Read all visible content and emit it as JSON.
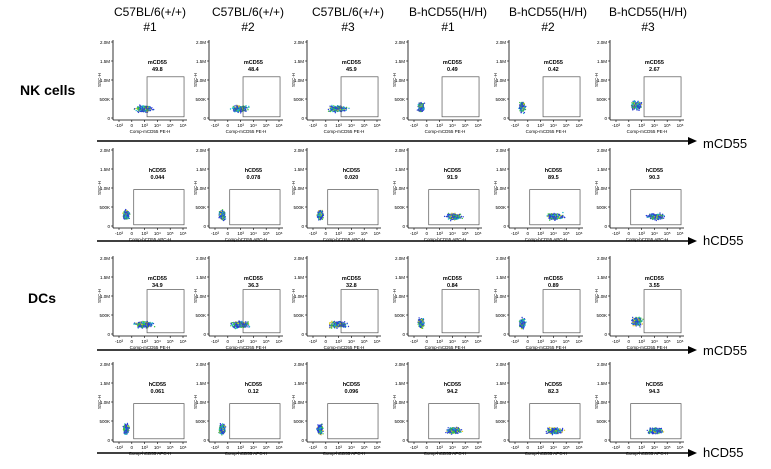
{
  "headers": [
    {
      "line1": "C57BL/6(+/+)",
      "line2": "#1"
    },
    {
      "line1": "C57BL/6(+/+)",
      "line2": "#2"
    },
    {
      "line1": "C57BL/6(+/+)",
      "line2": "#3"
    },
    {
      "line1": "B-hCD55(H/H)",
      "line2": "#1"
    },
    {
      "line1": "B-hCD55(H/H)",
      "line2": "#2"
    },
    {
      "line1": "B-hCD55(H/H)",
      "line2": "#3"
    }
  ],
  "group_labels": [
    "NK cells",
    "DCs"
  ],
  "arrow_labels": [
    "mCD55",
    "hCD55",
    "mCD55",
    "hCD55"
  ],
  "chart_data": {
    "type": "scatter",
    "panel_common": {
      "y_tick_labels": [
        "2.0M",
        "1.5M",
        "1.0M",
        "500K",
        "0"
      ],
      "ylabel": "SSC-H",
      "x_tick_labels": [
        "-10³",
        "0",
        "10³",
        "10⁴",
        "10⁵",
        "10⁶"
      ]
    },
    "rows": [
      {
        "group": "NK cells",
        "marker": "mCD55",
        "gate_label": "mCD55",
        "xlabel": "Comp-mCD55 PE-H",
        "values": [
          "49.8",
          "48.4",
          "45.9",
          "0.49",
          "0.42",
          "2.67"
        ]
      },
      {
        "group": "NK cells",
        "marker": "hCD55",
        "gate_label": "hCD55",
        "xlabel": "Comp-hCD55 APC-H",
        "values": [
          "0.044",
          "0.078",
          "0.020",
          "91.9",
          "89.5",
          "90.3"
        ]
      },
      {
        "group": "DCs",
        "marker": "mCD55",
        "gate_label": "mCD55",
        "xlabel": "Comp-mCD55 PE-H",
        "values": [
          "34.9",
          "36.3",
          "32.8",
          "0.84",
          "0.89",
          "3.55"
        ]
      },
      {
        "group": "DCs",
        "marker": "hCD55",
        "gate_label": "hCD55",
        "xlabel": "Comp-hCD55 APC-H",
        "values": [
          "0.061",
          "0.12",
          "0.096",
          "94.2",
          "82.3",
          "94.3"
        ]
      }
    ]
  },
  "colors": {
    "density_low": "#2a3fd6",
    "density_mid": "#18b8c8",
    "density_high": "#3cc43c",
    "density_peak": "#e0d020",
    "axis": "#000000",
    "gate": "#555555"
  }
}
